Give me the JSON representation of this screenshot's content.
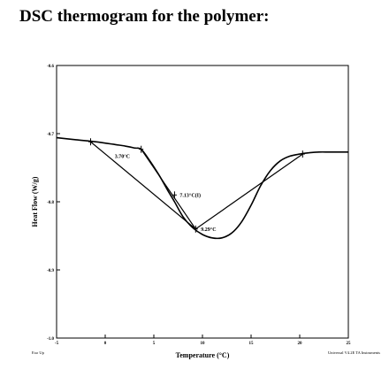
{
  "title": "DSC thermogram for the polymer:",
  "chart_data": {
    "type": "line",
    "title": "",
    "xlabel": "Temperature (°C)",
    "ylabel": "Heat Flow (W/g)",
    "xlim": [
      -5,
      25
    ],
    "ylim": [
      -1.0,
      -0.6
    ],
    "x_ticks": [
      -5,
      0,
      5,
      10,
      15,
      20,
      25
    ],
    "x_tick_labels": [
      "-5",
      "0",
      "5",
      "10",
      "15",
      "20",
      "25"
    ],
    "y_ticks": [
      -0.6,
      -0.7,
      -0.8,
      -0.9,
      -1.0
    ],
    "y_tick_labels": [
      "-0.6",
      "-0.7",
      "-0.8",
      "-0.9",
      "-1.0"
    ],
    "grid": false,
    "footer_left": "Exo Up",
    "footer_right": "Universal V4.2E TA Instruments",
    "series": [
      {
        "x": [
          -5,
          -3,
          -1,
          1,
          2,
          3,
          3.7,
          4.5,
          5.5,
          6.5,
          7.13,
          8,
          9,
          10,
          11,
          12,
          13,
          14,
          15,
          16,
          17,
          18,
          19,
          20,
          21,
          22,
          23,
          24,
          25
        ],
        "values": [
          -0.706,
          -0.709,
          -0.712,
          -0.716,
          -0.718,
          -0.721,
          -0.723,
          -0.738,
          -0.76,
          -0.785,
          -0.8,
          -0.822,
          -0.838,
          -0.848,
          -0.853,
          -0.853,
          -0.846,
          -0.83,
          -0.805,
          -0.776,
          -0.754,
          -0.74,
          -0.733,
          -0.73,
          -0.728,
          -0.727,
          -0.727,
          -0.727,
          -0.727
        ]
      }
    ],
    "construction_lines": [
      {
        "x": [
          -1.5,
          9.3
        ],
        "values": [
          -0.712,
          -0.84
        ]
      },
      {
        "x": [
          3.7,
          9.3
        ],
        "values": [
          -0.723,
          -0.84
        ]
      },
      {
        "x": [
          9.3,
          20.3
        ],
        "values": [
          -0.84,
          -0.73
        ]
      }
    ],
    "markers": [
      {
        "x": -1.5,
        "y": -0.712
      },
      {
        "x": 3.7,
        "y": -0.723
      },
      {
        "x": 7.13,
        "y": -0.79
      },
      {
        "x": 9.3,
        "y": -0.84
      },
      {
        "x": 20.3,
        "y": -0.73
      }
    ],
    "annotations": [
      {
        "text": "3.70°C",
        "x": 3.7,
        "y": -0.723,
        "dx": -30,
        "dy": 10
      },
      {
        "text": "7.13°C(I)",
        "x": 7.13,
        "y": -0.79,
        "dx": 6,
        "dy": 2
      },
      {
        "text": "9.29°C",
        "x": 9.3,
        "y": -0.84,
        "dx": 6,
        "dy": 2
      }
    ]
  }
}
